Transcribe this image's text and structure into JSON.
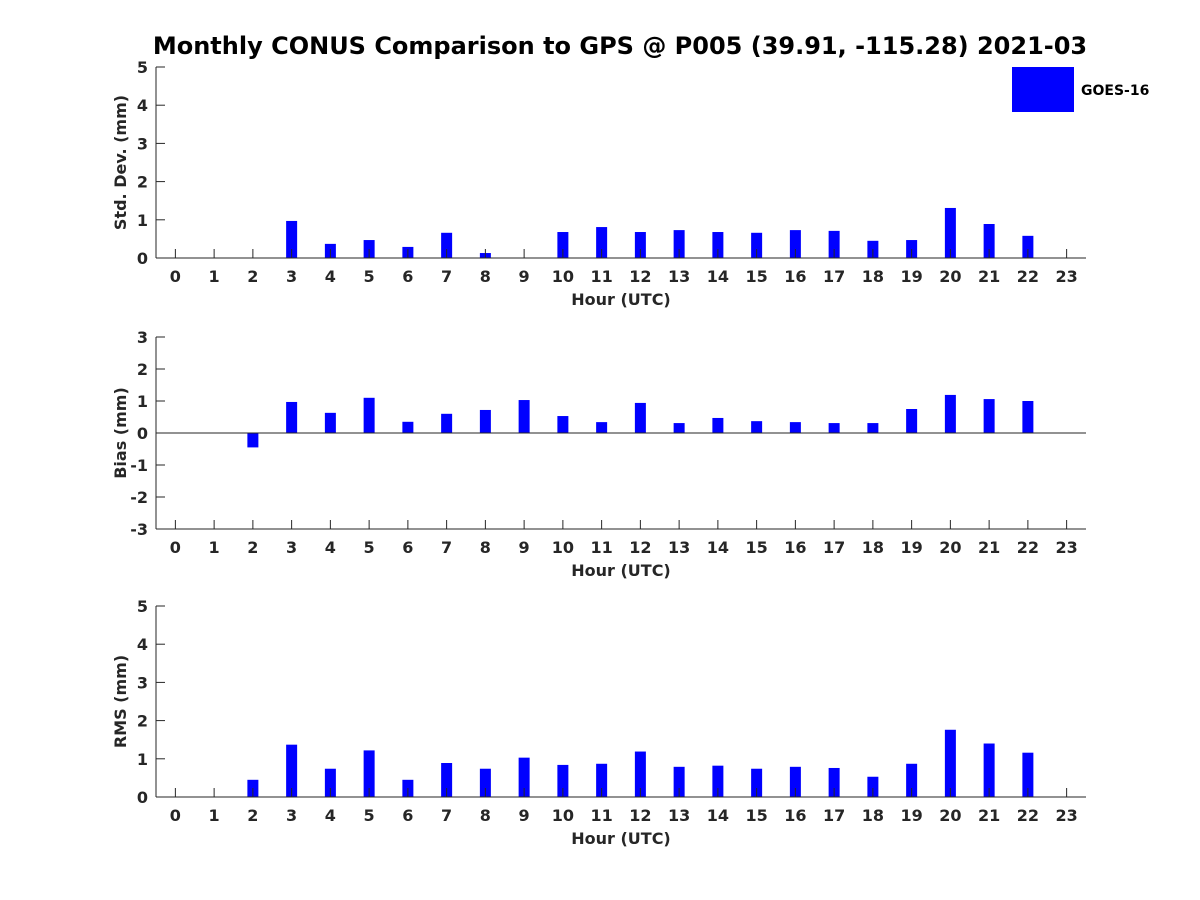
{
  "figure": {
    "title": "Monthly CONUS Comparison to GPS @ P005 (39.91, -115.28) 2021-03"
  },
  "legend": {
    "label": "GOES-16",
    "color": "#0000ff",
    "placement": "top-right"
  },
  "chart_data": [
    {
      "type": "bar",
      "xlabel": "Hour (UTC)",
      "ylabel": "Std. Dev. (mm)",
      "xlim": [
        -0.5,
        23.5
      ],
      "ylim": [
        0,
        5
      ],
      "yticks": [
        "0",
        "1",
        "2",
        "3",
        "4",
        "5"
      ],
      "categories": [
        "0",
        "1",
        "2",
        "3",
        "4",
        "5",
        "6",
        "7",
        "8",
        "9",
        "10",
        "11",
        "12",
        "13",
        "14",
        "15",
        "16",
        "17",
        "18",
        "19",
        "20",
        "21",
        "22",
        "23"
      ],
      "series": [
        {
          "name": "GOES-16",
          "values": [
            null,
            null,
            null,
            0.97,
            0.37,
            0.47,
            0.29,
            0.66,
            0.13,
            null,
            0.68,
            0.81,
            0.68,
            0.73,
            0.68,
            0.66,
            0.73,
            0.71,
            0.45,
            0.47,
            1.31,
            0.89,
            0.58,
            null
          ]
        }
      ],
      "grid": false
    },
    {
      "type": "bar",
      "xlabel": "Hour (UTC)",
      "ylabel": "Bias (mm)",
      "xlim": [
        -0.5,
        23.5
      ],
      "ylim": [
        -3,
        3
      ],
      "yticks": [
        "-3",
        "-2",
        "-1",
        "0",
        "1",
        "2",
        "3"
      ],
      "categories": [
        "0",
        "1",
        "2",
        "3",
        "4",
        "5",
        "6",
        "7",
        "8",
        "9",
        "10",
        "11",
        "12",
        "13",
        "14",
        "15",
        "16",
        "17",
        "18",
        "19",
        "20",
        "21",
        "22",
        "23"
      ],
      "series": [
        {
          "name": "GOES-16",
          "values": [
            null,
            null,
            -0.45,
            0.97,
            0.63,
            1.1,
            0.35,
            0.6,
            0.72,
            1.03,
            0.53,
            0.34,
            0.94,
            0.31,
            0.47,
            0.37,
            0.34,
            0.31,
            0.31,
            0.75,
            1.19,
            1.06,
            1.0,
            null
          ]
        }
      ],
      "grid": false
    },
    {
      "type": "bar",
      "xlabel": "Hour (UTC)",
      "ylabel": "RMS (mm)",
      "xlim": [
        -0.5,
        23.5
      ],
      "ylim": [
        0,
        5
      ],
      "yticks": [
        "0",
        "1",
        "2",
        "3",
        "4",
        "5"
      ],
      "categories": [
        "0",
        "1",
        "2",
        "3",
        "4",
        "5",
        "6",
        "7",
        "8",
        "9",
        "10",
        "11",
        "12",
        "13",
        "14",
        "15",
        "16",
        "17",
        "18",
        "19",
        "20",
        "21",
        "22",
        "23"
      ],
      "series": [
        {
          "name": "GOES-16",
          "values": [
            null,
            null,
            0.45,
            1.37,
            0.74,
            1.22,
            0.45,
            0.89,
            0.74,
            1.03,
            0.84,
            0.87,
            1.19,
            0.79,
            0.82,
            0.74,
            0.79,
            0.76,
            0.53,
            0.87,
            1.76,
            1.4,
            1.16,
            null
          ]
        }
      ],
      "grid": false
    }
  ]
}
